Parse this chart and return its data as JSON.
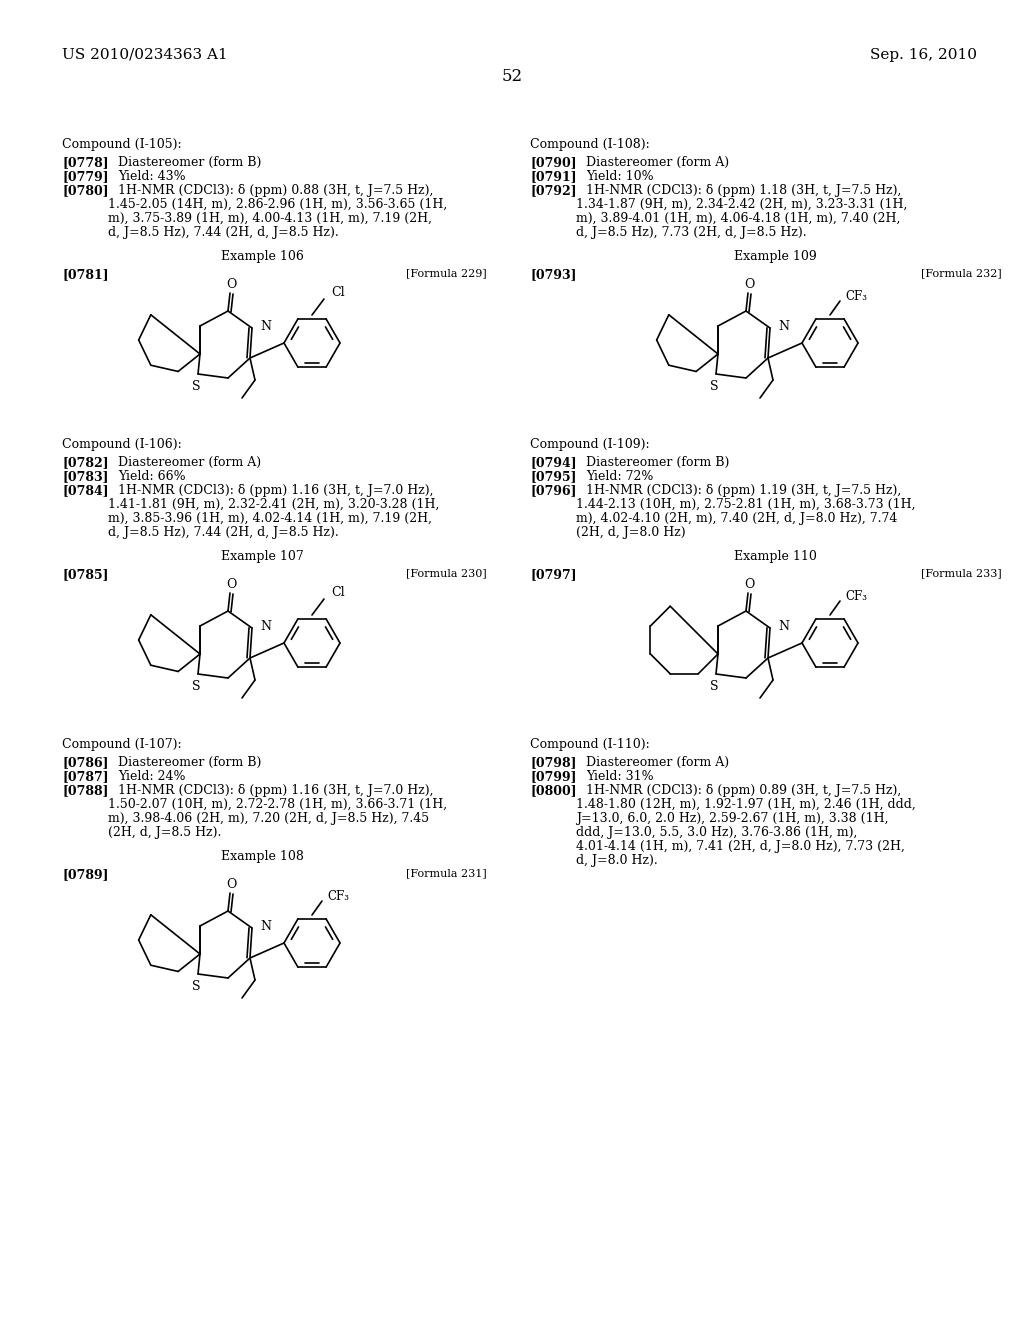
{
  "background_color": "#ffffff",
  "page_number": "52",
  "header_left": "US 2010/0234363 A1",
  "header_right": "Sep. 16, 2010"
}
